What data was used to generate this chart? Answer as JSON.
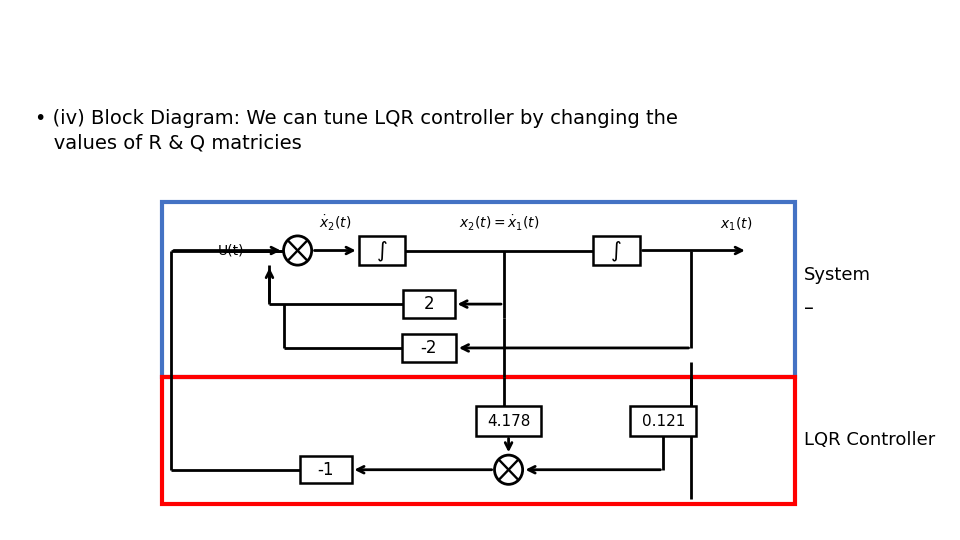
{
  "title_line1": "• (iv) Block Diagram: We can tune LQR controller by changing the",
  "title_line2": "   values of R & Q matricies",
  "title_fontsize": 14.5,
  "bg_color": "#ffffff",
  "system_box_color": "#4472C4",
  "lqr_box_color": "#FF0000",
  "system_label": "System",
  "lqr_label": "LQR Controller",
  "minus_label": "–",
  "int_label": "∫",
  "lw": 1.8,
  "sum_r": 0.013,
  "figw": 9.6,
  "figh": 5.4
}
